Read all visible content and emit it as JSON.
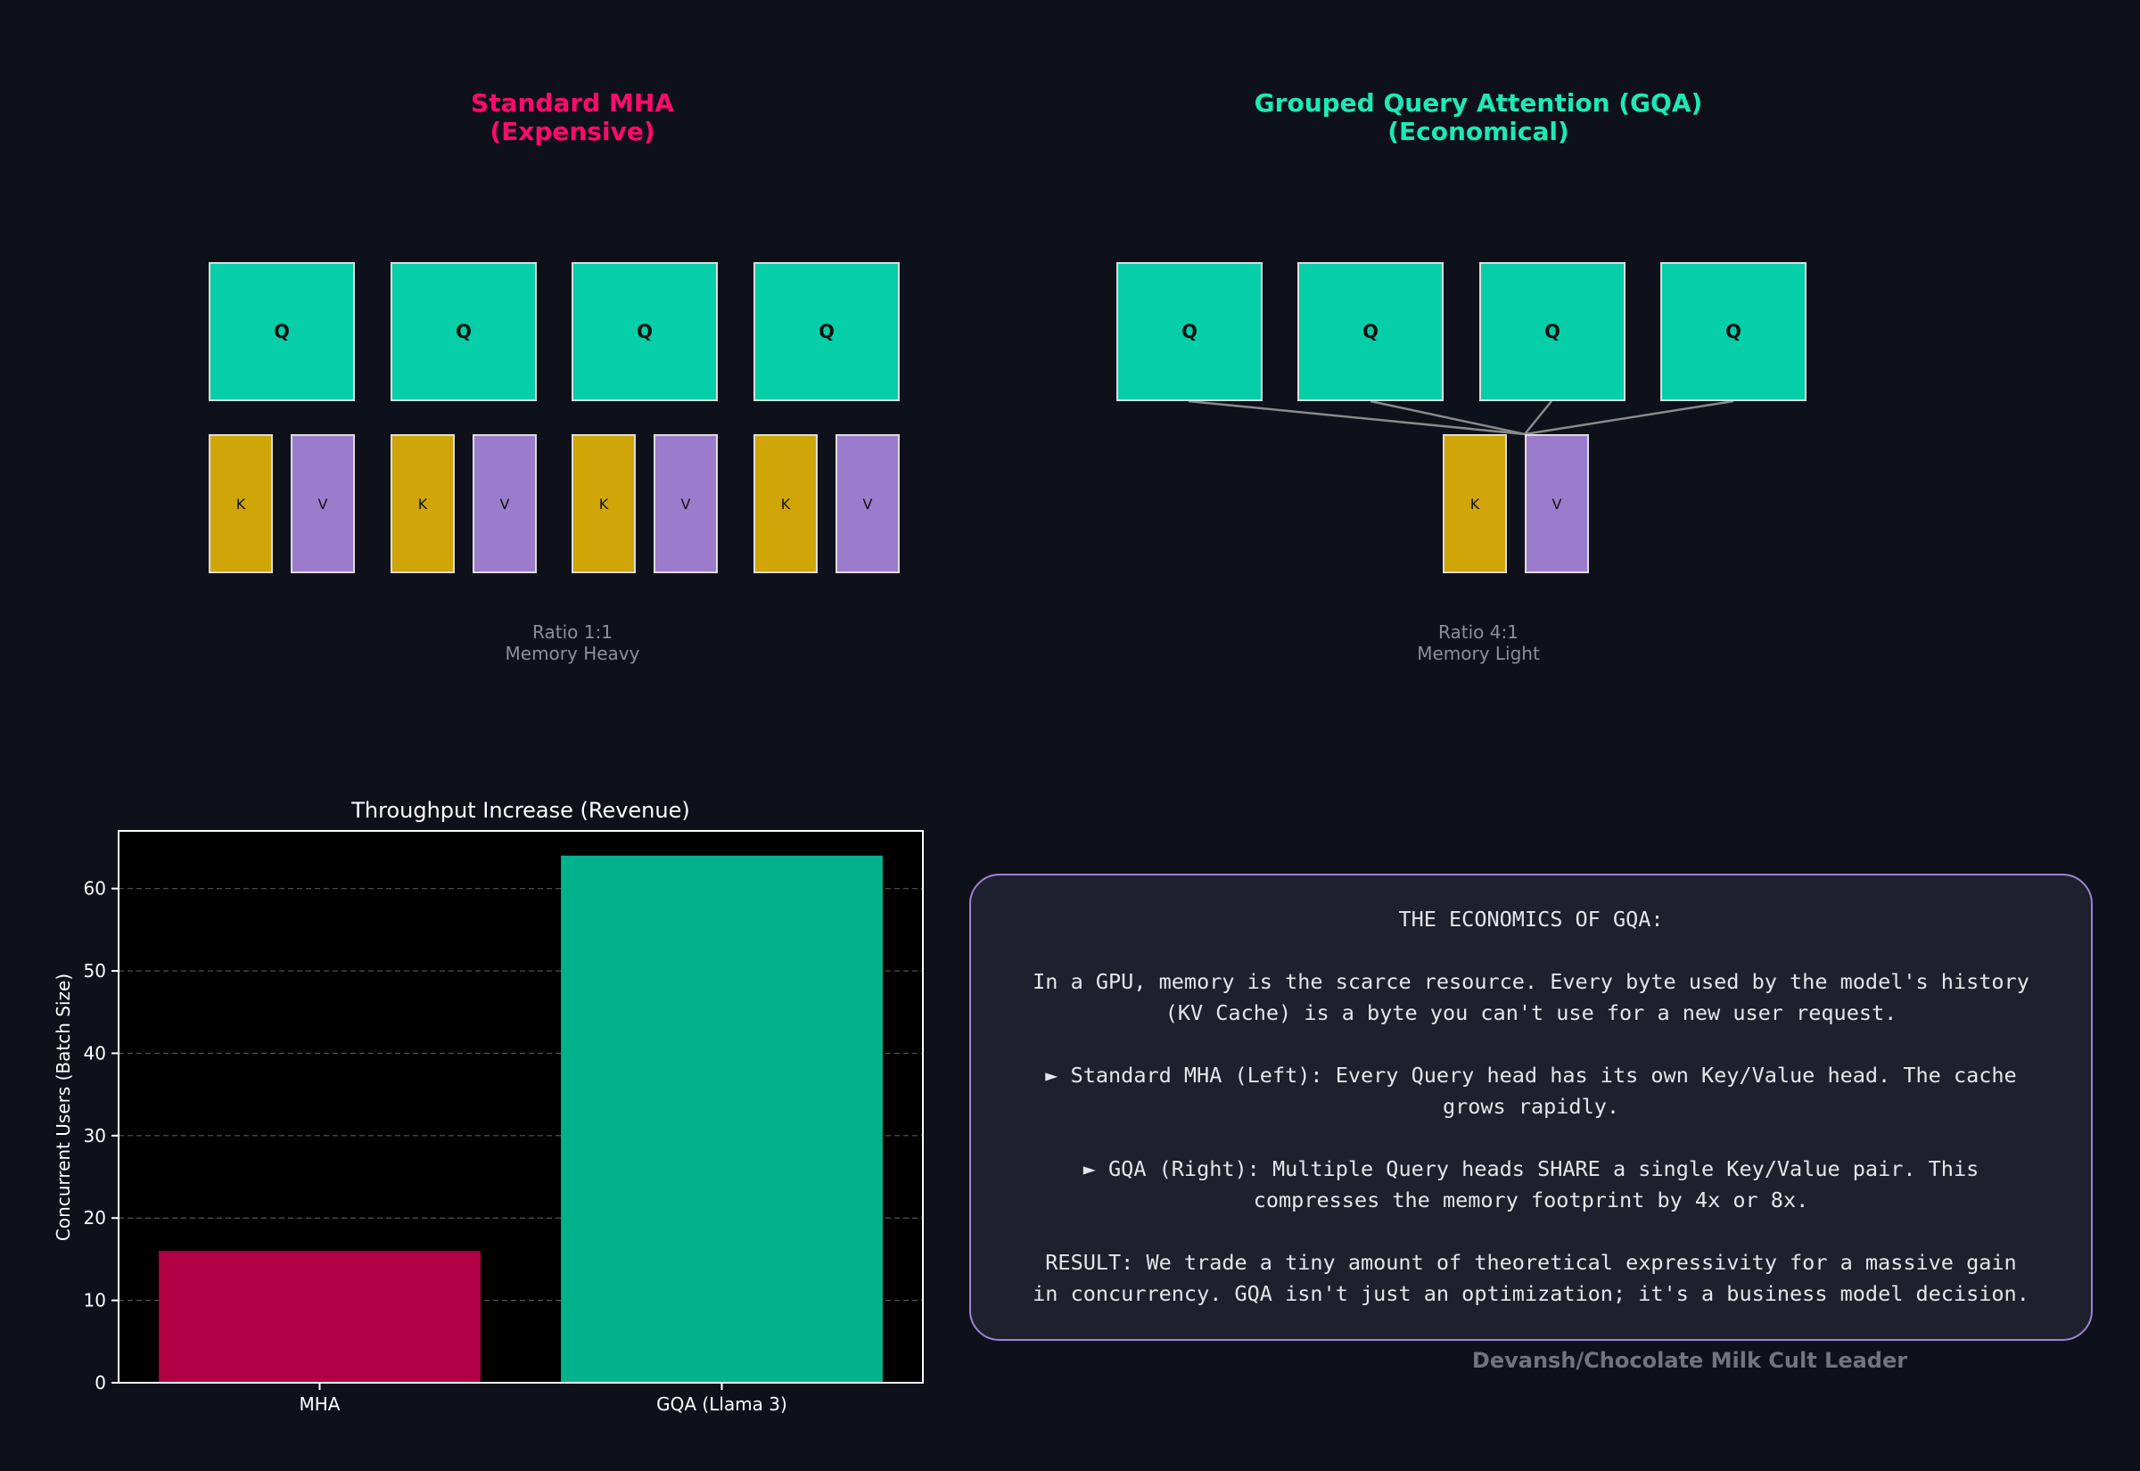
{
  "mha": {
    "title_line1": "Standard MHA",
    "title_line2": "(Expensive)",
    "title_color": "#ff0a6c",
    "q_labels": [
      "Q",
      "Q",
      "Q",
      "Q"
    ],
    "k_labels": [
      "K",
      "K",
      "K",
      "K"
    ],
    "v_labels": [
      "V",
      "V",
      "V",
      "V"
    ],
    "ratio_line1": "Ratio 1:1",
    "ratio_line2": "Memory Heavy"
  },
  "gqa": {
    "title_line1": "Grouped Query Attention (GQA)",
    "title_line2": "(Economical)",
    "title_color": "#1de9b6",
    "q_labels": [
      "Q",
      "Q",
      "Q",
      "Q"
    ],
    "k_label": "K",
    "v_label": "V",
    "ratio_line1": "Ratio 4:1",
    "ratio_line2": "Memory Light"
  },
  "colors": {
    "query": "#06cea9",
    "key": "#cfa507",
    "value": "#9b7ccc",
    "background": "#0f111a"
  },
  "chart_data": {
    "type": "bar",
    "title": "Throughput Increase (Revenue)",
    "xlabel": "",
    "ylabel": "Concurrent Users (Batch Size)",
    "categories": [
      "MHA",
      "GQA (Llama 3)"
    ],
    "values": [
      16,
      64
    ],
    "colors": [
      "#b10044",
      "#00b38d"
    ],
    "ylim": [
      0,
      67
    ],
    "yticks": [
      0,
      10,
      20,
      30,
      40,
      50,
      60
    ],
    "grid": true
  },
  "info": {
    "heading": "THE ECONOMICS OF GQA:",
    "para1_line1": "In a GPU, memory is the scarce resource. Every byte used by the model's history",
    "para1_line2": "(KV Cache) is a byte you can't use for a new user request.",
    "para2_line1": "► Standard MHA (Left): Every Query head has its own Key/Value head. The cache",
    "para2_line2": "grows rapidly.",
    "para3_line1": "► GQA (Right): Multiple Query heads SHARE a single Key/Value pair. This",
    "para3_line2": "compresses the memory footprint by 4x or 8x.",
    "para4_line1": "RESULT: We trade a tiny amount of theoretical expressivity for a massive gain",
    "para4_line2": "in concurrency. GQA isn't just an optimization; it's a business model decision."
  },
  "author": "Devansh/Chocolate Milk Cult Leader"
}
